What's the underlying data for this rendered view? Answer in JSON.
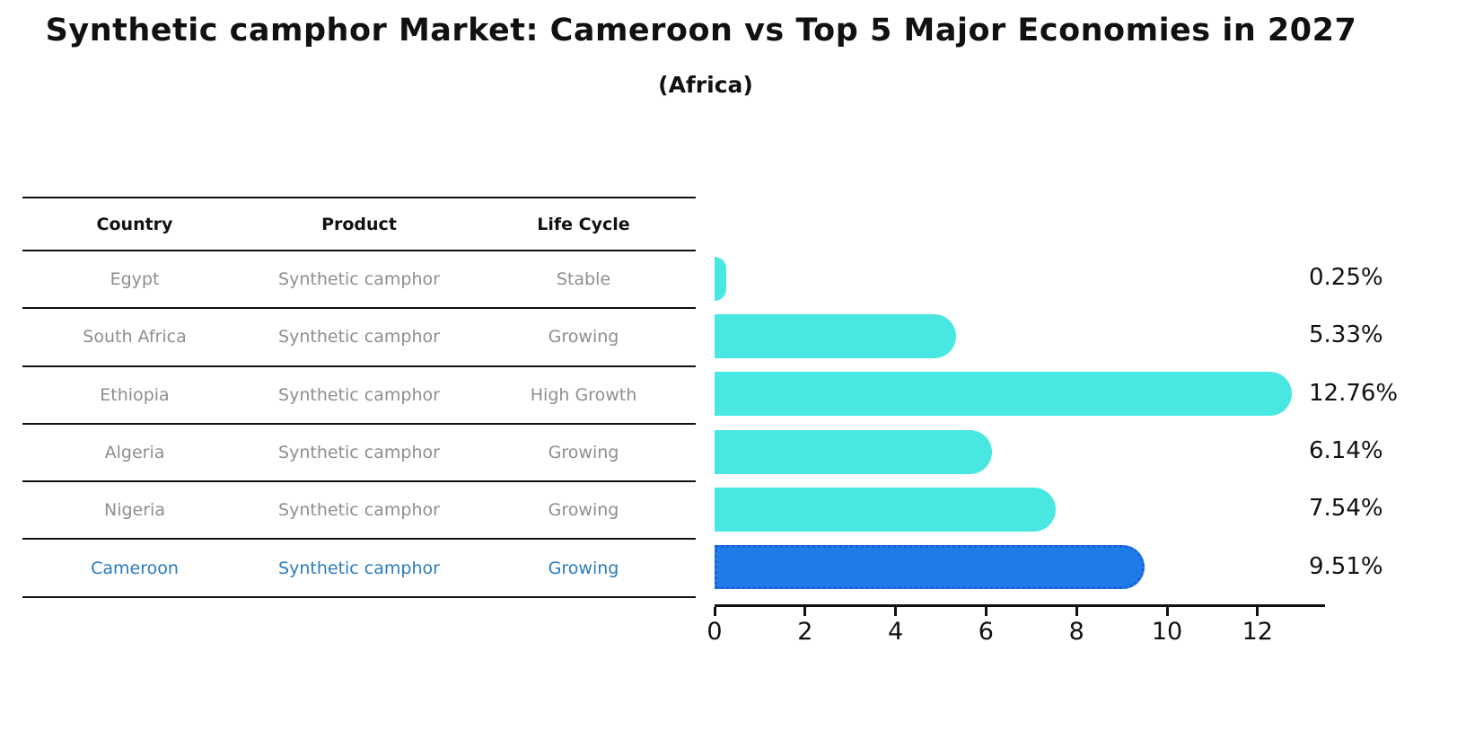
{
  "title": "Synthetic camphor Market: Cameroon vs Top 5 Major Economies in 2027",
  "subtitle": "(Africa)",
  "table": {
    "headers": [
      "Country",
      "Product",
      "Life Cycle"
    ],
    "rows": [
      {
        "country": "Egypt",
        "product": "Synthetic camphor",
        "life_cycle": "Stable",
        "highlight": false
      },
      {
        "country": "South Africa",
        "product": "Synthetic camphor",
        "life_cycle": "Growing",
        "highlight": false
      },
      {
        "country": "Ethiopia",
        "product": "Synthetic camphor",
        "life_cycle": "High Growth",
        "highlight": false
      },
      {
        "country": "Algeria",
        "product": "Synthetic camphor",
        "life_cycle": "Growing",
        "highlight": false
      },
      {
        "country": "Nigeria",
        "product": "Synthetic camphor",
        "life_cycle": "Growing",
        "highlight": false
      },
      {
        "country": "Cameroon",
        "product": "Synthetic camphor",
        "life_cycle": "Growing",
        "highlight": true
      }
    ]
  },
  "chart_data": {
    "type": "bar",
    "orientation": "horizontal",
    "title": "Synthetic camphor Market: Cameroon vs Top 5 Major Economies in 2027",
    "subtitle": "(Africa)",
    "categories": [
      "Egypt",
      "South Africa",
      "Ethiopia",
      "Algeria",
      "Nigeria",
      "Cameroon"
    ],
    "values": [
      0.25,
      5.33,
      12.76,
      6.14,
      7.54,
      9.51
    ],
    "value_labels": [
      "0.25%",
      "5.33%",
      "12.76%",
      "6.14%",
      "7.54%",
      "9.51%"
    ],
    "x_ticks": [
      "0",
      "2",
      "4",
      "6",
      "8",
      "10",
      "12"
    ],
    "x_tick_values": [
      0,
      2,
      4,
      6,
      8,
      10,
      12
    ],
    "xlim": [
      0,
      13.4
    ],
    "grid": false,
    "legend": null,
    "highlight_index": 5
  },
  "colors": {
    "bar": "#48E7E1",
    "highlight_bar": "#1E7CE9",
    "highlight_border": "#1D5FD6",
    "highlight_text": "#2B7BBD",
    "table_text": "#8E8E8E",
    "header_text": "#111111",
    "axis": "#111111"
  }
}
